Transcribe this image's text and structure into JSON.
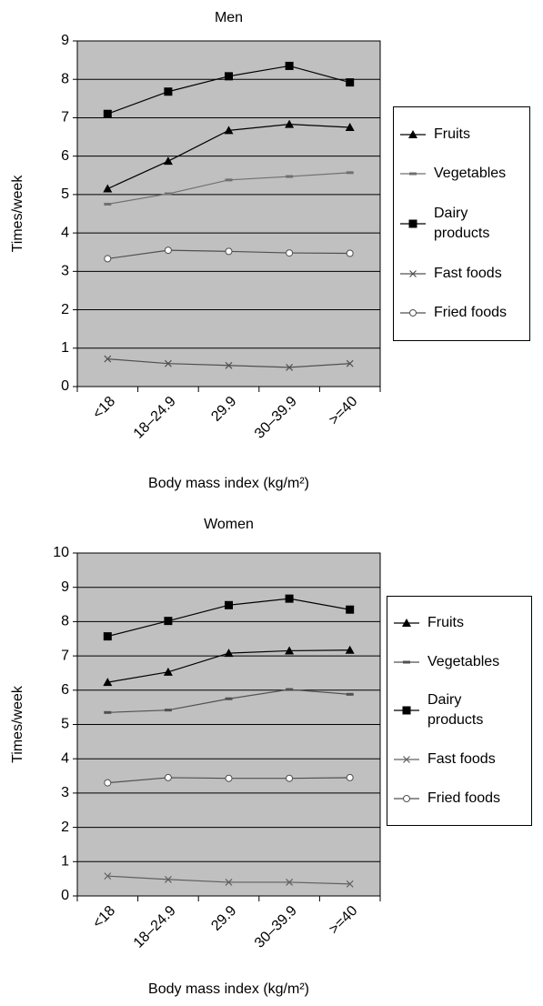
{
  "chart_data": [
    {
      "type": "line",
      "title": "Men",
      "ylabel": "Times/week",
      "xlabel": "Body mass index (kg/m²)",
      "categories": [
        "<18",
        "18–24.9",
        "29.9",
        "30–39.9",
        ">=40"
      ],
      "ylim": [
        0,
        9
      ],
      "yticks": [
        0,
        1,
        2,
        3,
        4,
        5,
        6,
        7,
        8,
        9
      ],
      "grid": true,
      "series": [
        {
          "name": "Fruits",
          "color": "#000000",
          "marker": "triangle",
          "values": [
            5.15,
            5.87,
            6.67,
            6.83,
            6.75
          ]
        },
        {
          "name": "Vegetables",
          "color": "#707070",
          "marker": "dash",
          "values": [
            4.75,
            5.02,
            5.38,
            5.47,
            5.57
          ]
        },
        {
          "name": "Dairy products",
          "color": "#000000",
          "marker": "square",
          "values": [
            7.1,
            7.68,
            8.08,
            8.35,
            7.92
          ]
        },
        {
          "name": "Fast foods",
          "color": "#505050",
          "marker": "x",
          "values": [
            0.72,
            0.6,
            0.55,
            0.5,
            0.6
          ]
        },
        {
          "name": "Fried foods",
          "color": "#505050",
          "marker": "circle",
          "values": [
            3.33,
            3.55,
            3.52,
            3.48,
            3.47
          ]
        }
      ]
    },
    {
      "type": "line",
      "title": "Women",
      "ylabel": "Times/week",
      "xlabel": "Body mass index (kg/m²)",
      "categories": [
        "<18",
        "18–24.9",
        "29.9",
        "30–39.9",
        ">=40"
      ],
      "ylim": [
        0,
        10
      ],
      "yticks": [
        0,
        1,
        2,
        3,
        4,
        5,
        6,
        7,
        8,
        9,
        10
      ],
      "grid": true,
      "series": [
        {
          "name": "Fruits",
          "color": "#000000",
          "marker": "triangle",
          "values": [
            6.23,
            6.53,
            7.08,
            7.15,
            7.17
          ]
        },
        {
          "name": "Vegetables",
          "color": "#505050",
          "marker": "dash",
          "values": [
            5.35,
            5.42,
            5.75,
            6.02,
            5.88
          ]
        },
        {
          "name": "Dairy products",
          "color": "#000000",
          "marker": "square",
          "values": [
            7.57,
            8.02,
            8.48,
            8.67,
            8.35
          ]
        },
        {
          "name": "Fast foods",
          "color": "#606060",
          "marker": "x",
          "values": [
            0.58,
            0.48,
            0.4,
            0.4,
            0.35
          ]
        },
        {
          "name": "Fried foods",
          "color": "#505050",
          "marker": "circle",
          "values": [
            3.3,
            3.45,
            3.43,
            3.43,
            3.45
          ]
        }
      ]
    }
  ]
}
